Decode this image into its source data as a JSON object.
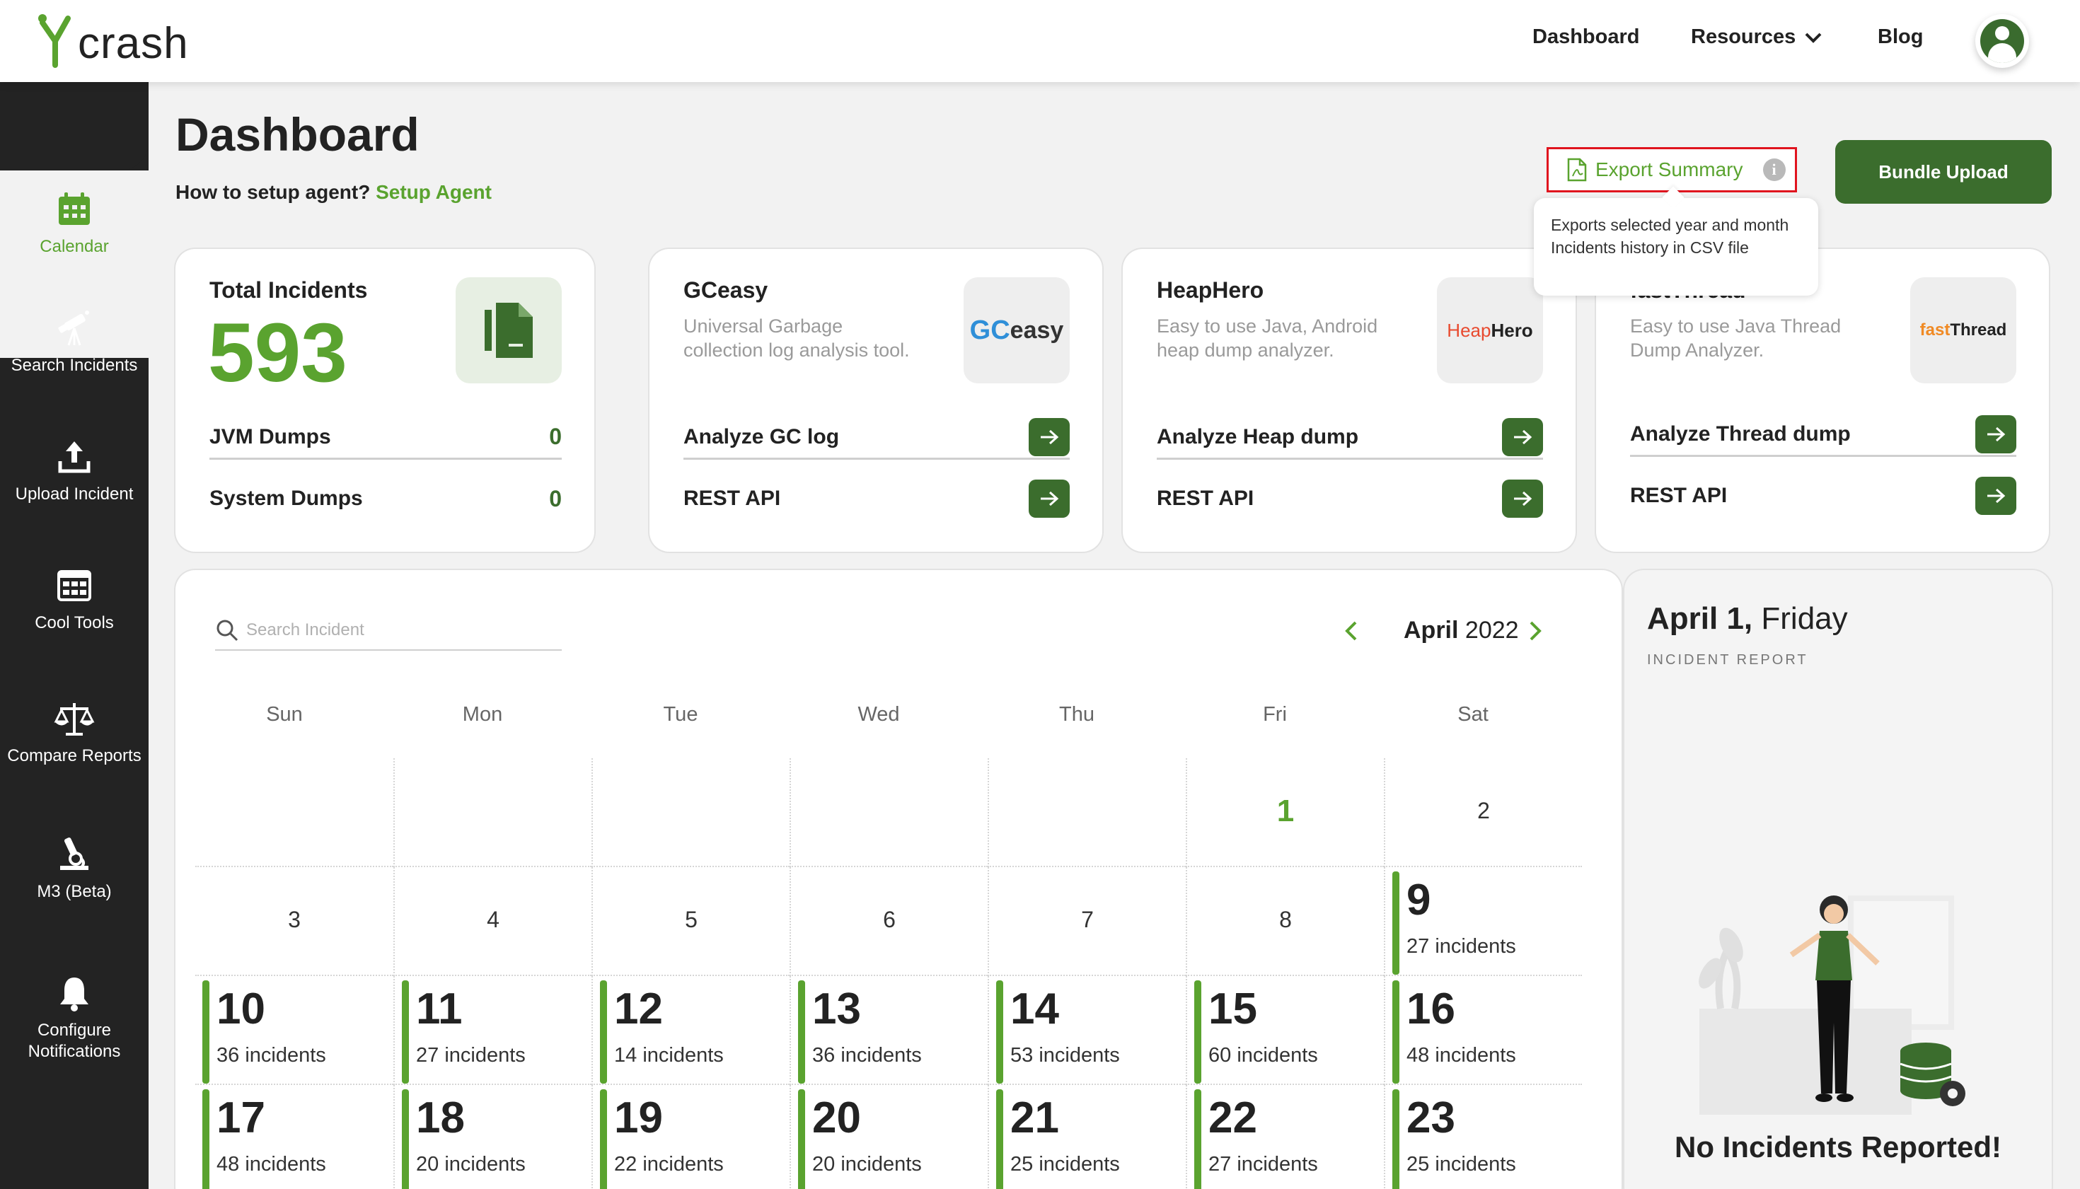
{
  "header": {
    "logo_text": "crash",
    "nav": {
      "dashboard": "Dashboard",
      "resources": "Resources",
      "blog": "Blog"
    }
  },
  "sidebar": {
    "items": [
      {
        "label": "Calendar",
        "icon": "calendar-icon",
        "active": true
      },
      {
        "label": "Search Incidents",
        "icon": "telescope-icon"
      },
      {
        "label": "Upload Incident",
        "icon": "upload-icon"
      },
      {
        "label": "Cool Tools",
        "icon": "tools-grid-icon"
      },
      {
        "label": "Compare Reports",
        "icon": "scale-icon"
      },
      {
        "label": "M3 (Beta)",
        "icon": "microscope-icon"
      },
      {
        "label": "Configure Notifications",
        "icon": "bell-icon"
      }
    ]
  },
  "page": {
    "title": "Dashboard",
    "setup_prompt": "How to setup agent?",
    "setup_link": "Setup Agent",
    "export_label": "Export Summary",
    "export_tooltip": "Exports selected year and month Incidents history in CSV file",
    "bundle_upload": "Bundle Upload"
  },
  "cards": {
    "total": {
      "title": "Total Incidents",
      "count": "593",
      "rows": [
        {
          "label": "JVM Dumps",
          "value": "0"
        },
        {
          "label": "System Dumps",
          "value": "0"
        }
      ]
    },
    "gceasy": {
      "title": "GCeasy",
      "desc": "Universal Garbage collection log analysis tool.",
      "logo_a": "GC",
      "logo_b": "easy",
      "action1": "Analyze GC log",
      "action2": "REST API"
    },
    "heaphero": {
      "title": "HeapHero",
      "desc": "Easy to use Java, Android heap dump analyzer.",
      "logo_a": "Heap",
      "logo_b": "Hero",
      "action1": "Analyze Heap dump",
      "action2": "REST API"
    },
    "fastthread": {
      "title": "fastThread",
      "desc": "Easy to use Java Thread Dump Analyzer.",
      "logo_a": "fast",
      "logo_b": "Thread",
      "action1": "Analyze Thread dump",
      "action2": "REST API"
    }
  },
  "calendar": {
    "search_placeholder": "Search Incident",
    "month": "April",
    "year": "2022",
    "weekdays": [
      "Sun",
      "Mon",
      "Tue",
      "Wed",
      "Thu",
      "Fri",
      "Sat"
    ],
    "weeks": [
      [
        null,
        null,
        null,
        null,
        null,
        {
          "day": "1",
          "today": true
        },
        {
          "day": "2"
        }
      ],
      [
        {
          "day": "3"
        },
        {
          "day": "4"
        },
        {
          "day": "5"
        },
        {
          "day": "6"
        },
        {
          "day": "7"
        },
        {
          "day": "8"
        },
        {
          "day": "9",
          "incidents": "27 incidents"
        }
      ],
      [
        {
          "day": "10",
          "incidents": "36 incidents"
        },
        {
          "day": "11",
          "incidents": "27 incidents"
        },
        {
          "day": "12",
          "incidents": "14 incidents"
        },
        {
          "day": "13",
          "incidents": "36 incidents"
        },
        {
          "day": "14",
          "incidents": "53 incidents"
        },
        {
          "day": "15",
          "incidents": "60 incidents"
        },
        {
          "day": "16",
          "incidents": "48 incidents"
        }
      ],
      [
        {
          "day": "17",
          "incidents": "48 incidents"
        },
        {
          "day": "18",
          "incidents": "20 incidents"
        },
        {
          "day": "19",
          "incidents": "22 incidents"
        },
        {
          "day": "20",
          "incidents": "20 incidents"
        },
        {
          "day": "21",
          "incidents": "25 incidents"
        },
        {
          "day": "22",
          "incidents": "27 incidents"
        },
        {
          "day": "23",
          "incidents": "25 incidents"
        }
      ]
    ]
  },
  "report": {
    "date": "April 1,",
    "weekday": "Friday",
    "subtitle": "INCIDENT REPORT",
    "empty_message": "No Incidents Reported!"
  },
  "colors": {
    "accent": "#5aa32f",
    "dark_green": "#3b6d2d",
    "sidebar": "#232323",
    "highlight": "#e0141e"
  }
}
